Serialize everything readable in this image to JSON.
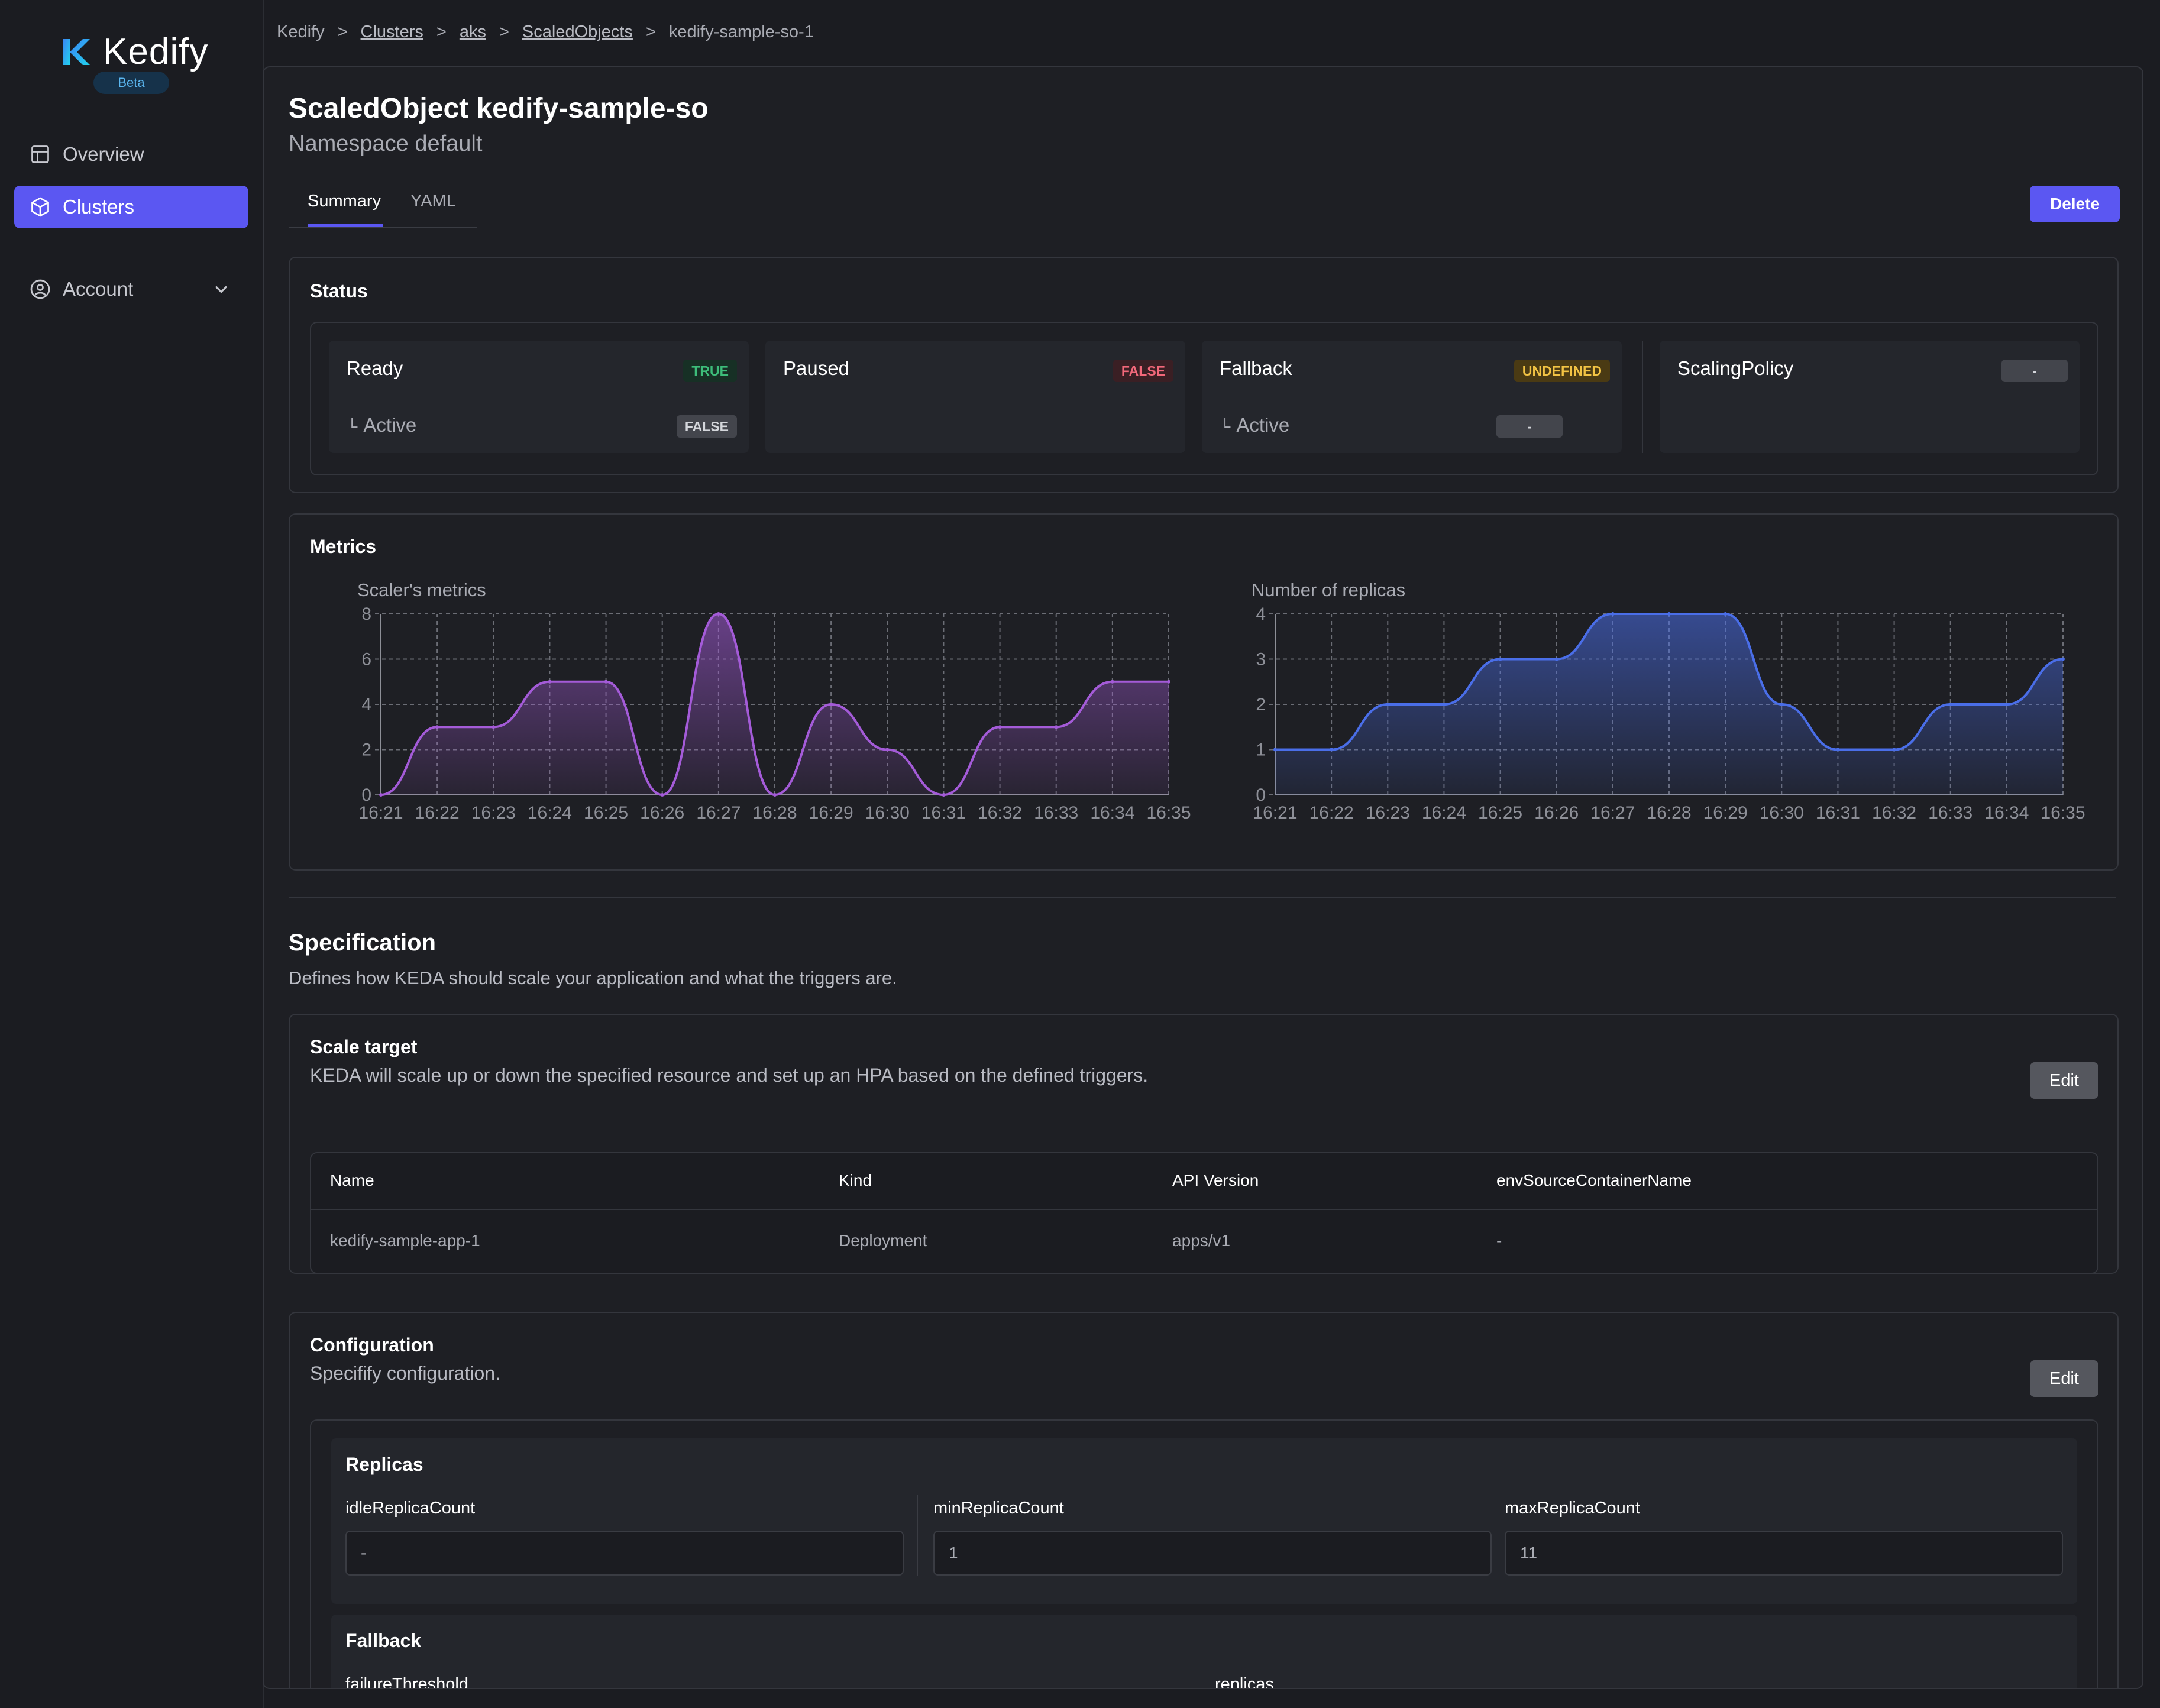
{
  "sidebar": {
    "logo": "Kedify",
    "beta": "Beta",
    "items": [
      {
        "label": "Overview"
      },
      {
        "label": "Clusters"
      },
      {
        "label": "Account"
      }
    ]
  },
  "breadcrumb": [
    "Kedify",
    "Clusters",
    "aks",
    "ScaledObjects",
    "kedify-sample-so-1"
  ],
  "breadcrumb_sep": ">",
  "page": {
    "title": "ScaledObject kedify-sample-so",
    "subtitle": "Namespace default",
    "tabs": [
      "Summary",
      "YAML"
    ],
    "delete_label": "Delete"
  },
  "status": {
    "title": "Status",
    "ready": {
      "label": "Ready",
      "value": "TRUE",
      "sub_label": "Active",
      "sub_value": "FALSE"
    },
    "paused": {
      "label": "Paused",
      "value": "FALSE"
    },
    "fallback": {
      "label": "Fallback",
      "value": "UNDEFINED",
      "sub_label": "Active",
      "sub_value": "-"
    },
    "scaling_policy": {
      "label": "ScalingPolicy",
      "value": "-"
    }
  },
  "metrics": {
    "title": "Metrics"
  },
  "chart_data": [
    {
      "type": "area",
      "title": "Scaler's metrics",
      "x": [
        "16:21",
        "16:22",
        "16:23",
        "16:24",
        "16:25",
        "16:26",
        "16:27",
        "16:28",
        "16:29",
        "16:30",
        "16:31",
        "16:32",
        "16:33",
        "16:34",
        "16:35"
      ],
      "series": [
        {
          "values": [
            0,
            3,
            3,
            5,
            5,
            0,
            8,
            0,
            4,
            2,
            0,
            3,
            3,
            5,
            5
          ]
        }
      ],
      "ylim": [
        0,
        8
      ],
      "yticks": [
        0,
        2,
        4,
        6,
        8
      ],
      "grid": true,
      "color": "#a45bd8"
    },
    {
      "type": "area",
      "title": "Number of replicas",
      "x": [
        "16:21",
        "16:22",
        "16:23",
        "16:24",
        "16:25",
        "16:26",
        "16:27",
        "16:28",
        "16:29",
        "16:30",
        "16:31",
        "16:32",
        "16:33",
        "16:34",
        "16:35"
      ],
      "series": [
        {
          "values": [
            1,
            1,
            2,
            2,
            3,
            3,
            4,
            4,
            4,
            2,
            1,
            1,
            2,
            2,
            3
          ]
        }
      ],
      "ylim": [
        0,
        4
      ],
      "yticks": [
        0,
        1,
        2,
        3,
        4
      ],
      "grid": true,
      "color": "#4a6ee8"
    }
  ],
  "specification": {
    "title": "Specification",
    "description": "Defines how KEDA should scale your application and what the triggers are.",
    "scale_target": {
      "title": "Scale target",
      "description": "KEDA will scale up or down the specified resource and set up an HPA based on the defined triggers.",
      "edit_label": "Edit",
      "columns": [
        "Name",
        "Kind",
        "API Version",
        "envSourceContainerName"
      ],
      "row": [
        "kedify-sample-app-1",
        "Deployment",
        "apps/v1",
        "-"
      ]
    },
    "configuration": {
      "title": "Configuration",
      "description": "Specifify configuration.",
      "edit_label": "Edit",
      "replicas": {
        "title": "Replicas",
        "fields": [
          {
            "label": "idleReplicaCount",
            "value": "-"
          },
          {
            "label": "minReplicaCount",
            "value": "1"
          },
          {
            "label": "maxReplicaCount",
            "value": "11"
          }
        ]
      },
      "fallback": {
        "title": "Fallback",
        "fields": [
          {
            "label": "failureThreshold"
          },
          {
            "label": "replicas"
          }
        ]
      }
    }
  }
}
